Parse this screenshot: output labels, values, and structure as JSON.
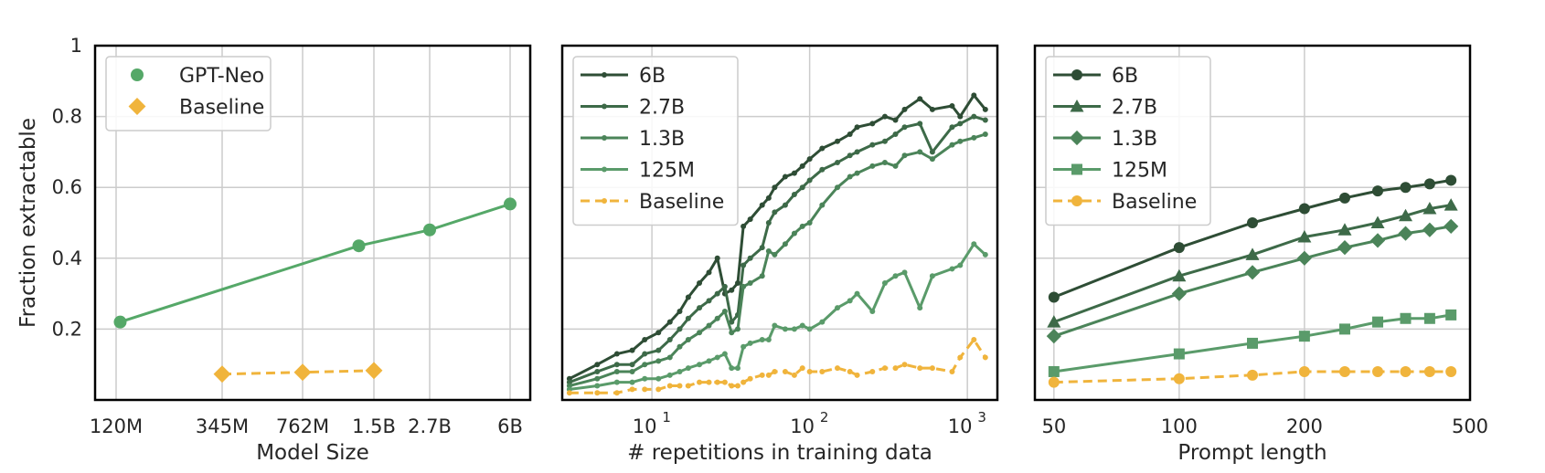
{
  "chart_data": [
    {
      "type": "scatter",
      "xlabel": "Model Size",
      "ylabel": "Fraction extractable",
      "ylim": [
        0,
        1
      ],
      "yticks": [
        "0.2",
        "0.4",
        "0.6",
        "0.8",
        "1"
      ],
      "xscale": "log",
      "xticks": [
        {
          "v": 120,
          "label": "120M"
        },
        {
          "v": 345,
          "label": "345M"
        },
        {
          "v": 762,
          "label": "762M"
        },
        {
          "v": 1500,
          "label": "1.5B"
        },
        {
          "v": 2700,
          "label": "2.7B"
        },
        {
          "v": 6000,
          "label": "6B"
        }
      ],
      "grid": true,
      "legend_position": "top-left",
      "series": [
        {
          "name": "GPT-Neo",
          "color": "#55a868",
          "marker": "circle",
          "dashed": false,
          "x": [
            125,
            1300,
            2700,
            6000
          ],
          "y": [
            0.22,
            0.435,
            0.48,
            0.553
          ]
        },
        {
          "name": "Baseline",
          "color": "#f0b43c",
          "marker": "diamond",
          "dashed": true,
          "x": [
            345,
            762,
            1500
          ],
          "y": [
            0.073,
            0.078,
            0.083
          ]
        }
      ]
    },
    {
      "type": "line",
      "xlabel": "# repetitions in training data",
      "xscale": "log",
      "ylim": [
        0,
        1
      ],
      "xticks": [
        {
          "v": 10,
          "base": "10",
          "exp": "1"
        },
        {
          "v": 100,
          "base": "10",
          "exp": "2"
        },
        {
          "v": 1000,
          "base": "10",
          "exp": "3"
        }
      ],
      "grid": true,
      "legend_position": "top-left",
      "series": [
        {
          "name": "6B",
          "color": "#2e4d35",
          "marker": "dot",
          "dashed": false,
          "x": [
            3,
            4.5,
            6,
            7.5,
            9,
            11,
            13,
            15,
            17,
            20,
            23,
            26,
            29,
            32,
            35,
            38,
            42,
            50,
            55,
            60,
            70,
            80,
            90,
            100,
            120,
            150,
            180,
            200,
            250,
            300,
            350,
            400,
            500,
            600,
            800,
            900,
            1100,
            1300
          ],
          "y": [
            0.06,
            0.1,
            0.13,
            0.14,
            0.17,
            0.19,
            0.22,
            0.25,
            0.29,
            0.33,
            0.36,
            0.4,
            0.3,
            0.31,
            0.33,
            0.49,
            0.51,
            0.55,
            0.57,
            0.6,
            0.63,
            0.64,
            0.66,
            0.68,
            0.71,
            0.73,
            0.75,
            0.77,
            0.78,
            0.8,
            0.79,
            0.82,
            0.85,
            0.82,
            0.83,
            0.8,
            0.86,
            0.82
          ]
        },
        {
          "name": "2.7B",
          "color": "#3d6a48",
          "marker": "dot",
          "dashed": false,
          "x": [
            3,
            4.5,
            6,
            7.5,
            9,
            11,
            13,
            15,
            17,
            20,
            23,
            26,
            29,
            32,
            35,
            38,
            42,
            50,
            55,
            60,
            70,
            80,
            90,
            100,
            120,
            150,
            180,
            200,
            250,
            300,
            350,
            400,
            500,
            600,
            800,
            900,
            1100,
            1300
          ],
          "y": [
            0.05,
            0.08,
            0.1,
            0.1,
            0.13,
            0.14,
            0.17,
            0.2,
            0.23,
            0.26,
            0.28,
            0.3,
            0.32,
            0.22,
            0.24,
            0.38,
            0.4,
            0.43,
            0.5,
            0.53,
            0.55,
            0.58,
            0.6,
            0.62,
            0.65,
            0.67,
            0.69,
            0.7,
            0.72,
            0.73,
            0.75,
            0.77,
            0.78,
            0.7,
            0.77,
            0.78,
            0.8,
            0.79
          ]
        },
        {
          "name": "1.3B",
          "color": "#4b8459",
          "marker": "dot",
          "dashed": false,
          "x": [
            3,
            4.5,
            6,
            7.5,
            9,
            11,
            13,
            15,
            17,
            20,
            23,
            26,
            29,
            32,
            35,
            38,
            42,
            50,
            55,
            60,
            70,
            80,
            90,
            100,
            120,
            150,
            180,
            200,
            250,
            300,
            350,
            400,
            500,
            600,
            800,
            900,
            1100,
            1300
          ],
          "y": [
            0.04,
            0.06,
            0.08,
            0.08,
            0.1,
            0.11,
            0.12,
            0.15,
            0.17,
            0.19,
            0.21,
            0.23,
            0.25,
            0.19,
            0.2,
            0.32,
            0.33,
            0.35,
            0.42,
            0.41,
            0.44,
            0.47,
            0.49,
            0.5,
            0.55,
            0.6,
            0.63,
            0.64,
            0.66,
            0.67,
            0.66,
            0.69,
            0.7,
            0.68,
            0.72,
            0.73,
            0.74,
            0.75
          ]
        },
        {
          "name": "125M",
          "color": "#5a9b6a",
          "marker": "dot",
          "dashed": false,
          "x": [
            3,
            4.5,
            6,
            7.5,
            9,
            11,
            13,
            15,
            17,
            20,
            23,
            26,
            29,
            32,
            35,
            38,
            42,
            50,
            55,
            60,
            70,
            80,
            90,
            100,
            120,
            150,
            180,
            200,
            250,
            300,
            350,
            400,
            500,
            600,
            800,
            900,
            1100,
            1300
          ],
          "y": [
            0.03,
            0.04,
            0.05,
            0.05,
            0.06,
            0.06,
            0.07,
            0.08,
            0.09,
            0.1,
            0.11,
            0.12,
            0.13,
            0.09,
            0.09,
            0.15,
            0.16,
            0.17,
            0.17,
            0.21,
            0.2,
            0.2,
            0.21,
            0.2,
            0.22,
            0.26,
            0.28,
            0.3,
            0.25,
            0.33,
            0.35,
            0.36,
            0.26,
            0.35,
            0.37,
            0.38,
            0.44,
            0.41
          ]
        },
        {
          "name": "Baseline",
          "color": "#f0b43c",
          "marker": "dot",
          "dashed": true,
          "x": [
            3,
            4.5,
            6,
            7.5,
            9,
            11,
            13,
            15,
            17,
            20,
            23,
            26,
            29,
            32,
            35,
            38,
            42,
            50,
            55,
            60,
            70,
            80,
            90,
            100,
            120,
            150,
            180,
            200,
            250,
            300,
            350,
            400,
            500,
            600,
            800,
            900,
            1100,
            1300
          ],
          "y": [
            0.02,
            0.02,
            0.02,
            0.03,
            0.03,
            0.03,
            0.04,
            0.04,
            0.04,
            0.05,
            0.05,
            0.05,
            0.05,
            0.04,
            0.04,
            0.05,
            0.06,
            0.07,
            0.07,
            0.08,
            0.08,
            0.07,
            0.09,
            0.08,
            0.08,
            0.09,
            0.08,
            0.07,
            0.08,
            0.09,
            0.09,
            0.1,
            0.09,
            0.09,
            0.08,
            0.12,
            0.17,
            0.12
          ]
        }
      ]
    },
    {
      "type": "line",
      "xlabel": "Prompt length",
      "xscale": "log",
      "ylim": [
        0,
        1
      ],
      "xticks": [
        {
          "v": 50,
          "label": "50"
        },
        {
          "v": 100,
          "label": "100"
        },
        {
          "v": 200,
          "label": "200"
        },
        {
          "v": 500,
          "label": "500"
        }
      ],
      "grid": true,
      "legend_position": "top-left",
      "series": [
        {
          "name": "6B",
          "color": "#2e4d35",
          "marker": "circle",
          "dashed": false,
          "x": [
            50,
            100,
            150,
            200,
            250,
            300,
            350,
            400,
            450
          ],
          "y": [
            0.29,
            0.43,
            0.5,
            0.54,
            0.57,
            0.59,
            0.6,
            0.61,
            0.62
          ]
        },
        {
          "name": "2.7B",
          "color": "#3d6a48",
          "marker": "triangle",
          "dashed": false,
          "x": [
            50,
            100,
            150,
            200,
            250,
            300,
            350,
            400,
            450
          ],
          "y": [
            0.22,
            0.35,
            0.41,
            0.46,
            0.48,
            0.5,
            0.52,
            0.54,
            0.55
          ]
        },
        {
          "name": "1.3B",
          "color": "#4b8459",
          "marker": "diamond",
          "dashed": false,
          "x": [
            50,
            100,
            150,
            200,
            250,
            300,
            350,
            400,
            450
          ],
          "y": [
            0.18,
            0.3,
            0.36,
            0.4,
            0.43,
            0.45,
            0.47,
            0.48,
            0.49
          ]
        },
        {
          "name": "125M",
          "color": "#5a9b6a",
          "marker": "square",
          "dashed": false,
          "x": [
            50,
            100,
            150,
            200,
            250,
            300,
            350,
            400,
            450
          ],
          "y": [
            0.08,
            0.13,
            0.16,
            0.18,
            0.2,
            0.22,
            0.23,
            0.23,
            0.24
          ]
        },
        {
          "name": "Baseline",
          "color": "#f0b43c",
          "marker": "circle",
          "dashed": true,
          "x": [
            50,
            100,
            150,
            200,
            250,
            300,
            350,
            400,
            450
          ],
          "y": [
            0.05,
            0.06,
            0.07,
            0.08,
            0.08,
            0.08,
            0.08,
            0.08,
            0.08
          ]
        }
      ]
    }
  ]
}
